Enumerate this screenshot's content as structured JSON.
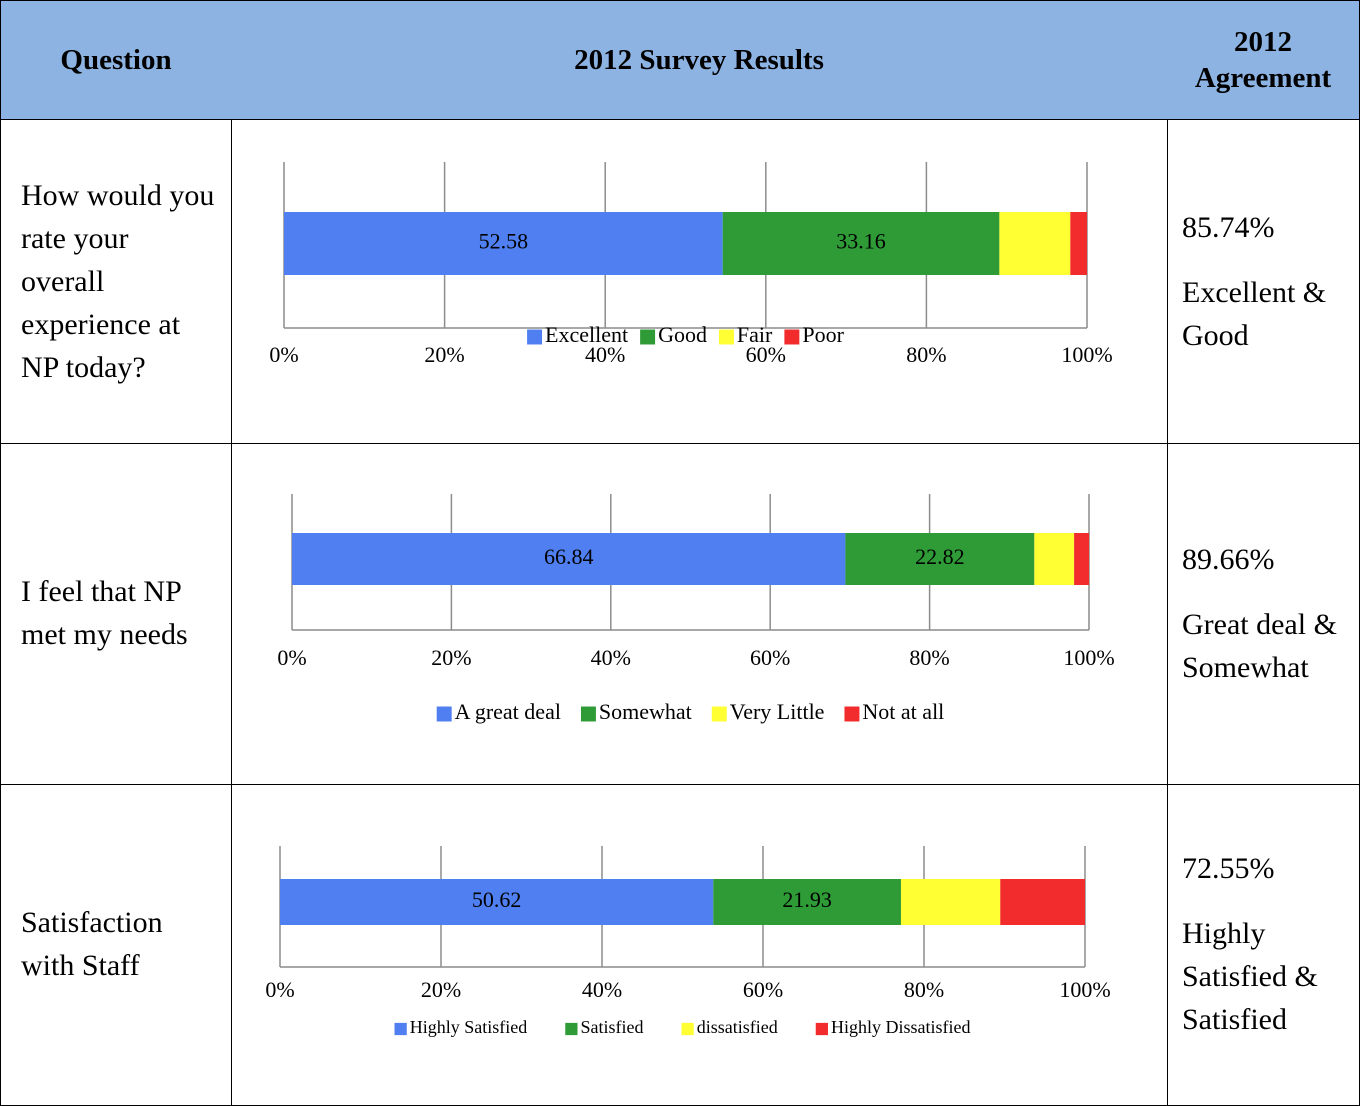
{
  "table": {
    "header": [
      "Question",
      "2012 Survey Results",
      "2012 Agreement"
    ],
    "rows": [
      {
        "question": "How would you rate your overall experience at NP today?",
        "chart": {
          "type": "bar",
          "orientation": "horizontal",
          "stacked": "percent",
          "series": [
            {
              "name": "Excellent",
              "color": "#4f7ff0",
              "values": [
                52.58
              ],
              "show_value": true
            },
            {
              "name": "Good",
              "color": "#2e9b36",
              "values": [
                33.16
              ],
              "show_value": true
            },
            {
              "name": "Fair",
              "color": "#ffff33",
              "values": [
                8.5
              ],
              "show_value": false
            },
            {
              "name": "Poor",
              "color": "#f22c2c",
              "values": [
                2.0
              ],
              "show_value": false
            }
          ],
          "xlim": [
            0,
            100
          ],
          "xticks": [
            {
              "value": 0,
              "label": "0%"
            },
            {
              "value": 20,
              "label": "20%"
            },
            {
              "value": 40,
              "label": "40%"
            },
            {
              "value": 60,
              "label": "60%"
            },
            {
              "value": 80,
              "label": "80%"
            },
            {
              "value": 100,
              "label": "100%"
            }
          ],
          "grid": true
        },
        "agreement": "85.74%",
        "agreement_label": "Excellent & Good"
      },
      {
        "question": "I feel that NP met my needs",
        "chart": {
          "type": "bar",
          "orientation": "horizontal",
          "stacked": "percent",
          "series": [
            {
              "name": "A great deal",
              "color": "#4f7ff0",
              "values": [
                66.84
              ],
              "show_value": true
            },
            {
              "name": "Somewhat",
              "color": "#2e9b36",
              "values": [
                22.82
              ],
              "show_value": true
            },
            {
              "name": "Very Little",
              "color": "#ffff33",
              "values": [
                4.8
              ],
              "show_value": false
            },
            {
              "name": "Not at all",
              "color": "#f22c2c",
              "values": [
                1.8
              ],
              "show_value": false
            }
          ],
          "xlim": [
            0,
            100
          ],
          "xticks": [
            {
              "value": 0,
              "label": "0%"
            },
            {
              "value": 20,
              "label": "20%"
            },
            {
              "value": 40,
              "label": "40%"
            },
            {
              "value": 60,
              "label": "60%"
            },
            {
              "value": 80,
              "label": "80%"
            },
            {
              "value": 100,
              "label": "100%"
            }
          ],
          "grid": true
        },
        "agreement": "89.66%",
        "agreement_label": "Great deal & Somewhat"
      },
      {
        "question": "Satisfaction with Staff",
        "chart": {
          "type": "bar",
          "orientation": "horizontal",
          "stacked": "percent",
          "series": [
            {
              "name": "Highly Satisfied",
              "color": "#4f7ff0",
              "values": [
                50.62
              ],
              "show_value": true
            },
            {
              "name": "Satisfied",
              "color": "#2e9b36",
              "values": [
                21.93
              ],
              "show_value": true
            },
            {
              "name": "dissatisfied",
              "color": "#ffff33",
              "values": [
                11.6
              ],
              "show_value": false
            },
            {
              "name": "Highly Dissatisfied",
              "color": "#f22c2c",
              "values": [
                9.9
              ],
              "show_value": false
            }
          ],
          "xlim": [
            0,
            100
          ],
          "xticks": [
            {
              "value": 0,
              "label": "0%"
            },
            {
              "value": 20,
              "label": "20%"
            },
            {
              "value": 40,
              "label": "40%"
            },
            {
              "value": 60,
              "label": "60%"
            },
            {
              "value": 80,
              "label": "80%"
            },
            {
              "value": 100,
              "label": "100%"
            }
          ],
          "grid": true
        },
        "agreement": "72.55%",
        "agreement_label": "Highly Satisfied & Satisfied"
      }
    ]
  }
}
